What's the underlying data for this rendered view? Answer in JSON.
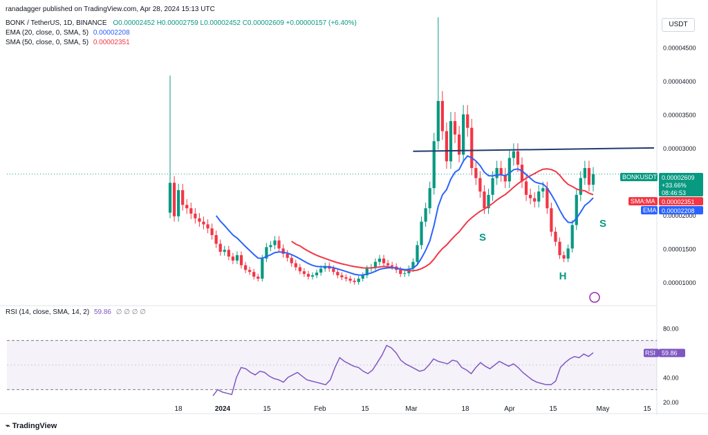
{
  "header": {
    "published": "ranadagger published on TradingView.com, Apr 28, 2024 15:13 UTC",
    "symbol": "BONK / TetherUS, 1D, BINANCE",
    "ohlc": "O0.00002452 H0.00002759 L0.00002452 C0.00002609 +0.00000157 (+6.40%)",
    "ema_label": "EMA (20, close, 0, SMA, 5)",
    "ema_value": "0.00002208",
    "sma_label": "SMA (50, close, 0, SMA, 5)",
    "sma_value": "0.00002351",
    "rsi_label": "RSI (14, close, SMA, 14, 2)",
    "rsi_value": "59.86",
    "rsi_extra": "∅ ∅ ∅ ∅"
  },
  "currency_button": "USDT",
  "footer_logo": "TradingView",
  "colors": {
    "up": "#089981",
    "down": "#f23645",
    "ema": "#2962ff",
    "sma": "#f23645",
    "neckline": "#1e3a6e",
    "rsi": "#7e57c2",
    "pattern_text": "#089981"
  },
  "chart_data": {
    "type": "candlestick",
    "y_axis": {
      "ticks": [
        "0.00004500",
        "0.00004000",
        "0.00003500",
        "0.00003000",
        "0.00002500",
        "0.00002000",
        "0.00001500",
        "0.00001000"
      ],
      "ylim": [
        7.5e-06,
        5e-05
      ]
    },
    "x_axis": {
      "ticks": [
        "18",
        "2024",
        "15",
        "Feb",
        "15",
        "Mar",
        "18",
        "Apr",
        "15",
        "May",
        "15"
      ]
    },
    "price_labels": [
      {
        "name": "BONKUSDT",
        "lines": [
          "0.00002609",
          "+33.66%",
          "08:46:53"
        ],
        "color": "#089981"
      },
      {
        "name": "SMA:MA",
        "lines": [
          "0.00002351"
        ],
        "color": "#f23645"
      },
      {
        "name": "EMA",
        "lines": [
          "0.00002208"
        ],
        "color": "#2962ff"
      }
    ],
    "annotations": [
      {
        "text": "S",
        "label": "left-shoulder"
      },
      {
        "text": "H",
        "label": "head"
      },
      {
        "text": "S",
        "label": "right-shoulder"
      }
    ],
    "neckline": {
      "from_bar": 58,
      "to_bar": 96,
      "start": 2.95e-05,
      "end": 3e-05
    },
    "candles_close": [
      2.48,
      1.98,
      2.37,
      2.15,
      2.1,
      2.02,
      1.95,
      1.9,
      1.86,
      1.8,
      1.7,
      1.57,
      1.45,
      1.48,
      1.38,
      1.32,
      1.4,
      1.25,
      1.18,
      1.15,
      1.08,
      1.05,
      1.35,
      1.52,
      1.55,
      1.62,
      1.5,
      1.42,
      1.36,
      1.28,
      1.22,
      1.16,
      1.12,
      1.08,
      1.1,
      1.14,
      1.2,
      1.24,
      1.2,
      1.15,
      1.1,
      1.07,
      1.05,
      1.02,
      1.0,
      1.05,
      1.1,
      1.2,
      1.22,
      1.3,
      1.35,
      1.28,
      1.25,
      1.23,
      1.18,
      1.12,
      1.13,
      1.2,
      1.3,
      1.55,
      1.9,
      2.1,
      2.4,
      3.1,
      3.7,
      3.25,
      2.8,
      3.4,
      3.2,
      2.9,
      3.5,
      3.3,
      2.7,
      2.55,
      2.35,
      2.1,
      2.3,
      2.55,
      2.7,
      2.6,
      2.5,
      2.85,
      2.95,
      2.75,
      2.5,
      2.3,
      2.25,
      2.2,
      2.35,
      2.4,
      2.1,
      1.75,
      1.6,
      1.4,
      1.35,
      1.5,
      1.85,
      2.3,
      2.55,
      2.7,
      2.45,
      2.61
    ],
    "rsi": {
      "levels": [
        70,
        30
      ],
      "ticks": [
        "80.00",
        "60.00",
        "40.00",
        "20.00"
      ],
      "values": [
        25,
        30,
        28,
        27,
        26,
        40,
        48,
        47,
        44,
        42,
        45,
        44,
        41,
        39,
        38,
        36,
        40,
        42,
        44,
        41,
        38,
        37,
        36,
        35,
        34,
        38,
        48,
        56,
        53,
        51,
        49,
        48,
        45,
        43,
        46,
        52,
        58,
        66,
        64,
        60,
        54,
        51,
        49,
        47,
        45,
        46,
        50,
        55,
        53,
        52,
        51,
        54,
        53,
        48,
        46,
        43,
        48,
        52,
        49,
        47,
        50,
        53,
        51,
        49,
        51,
        48,
        44,
        41,
        38,
        36,
        35,
        34,
        34,
        37,
        48,
        52,
        55,
        57,
        56,
        59,
        57,
        60
      ]
    }
  }
}
